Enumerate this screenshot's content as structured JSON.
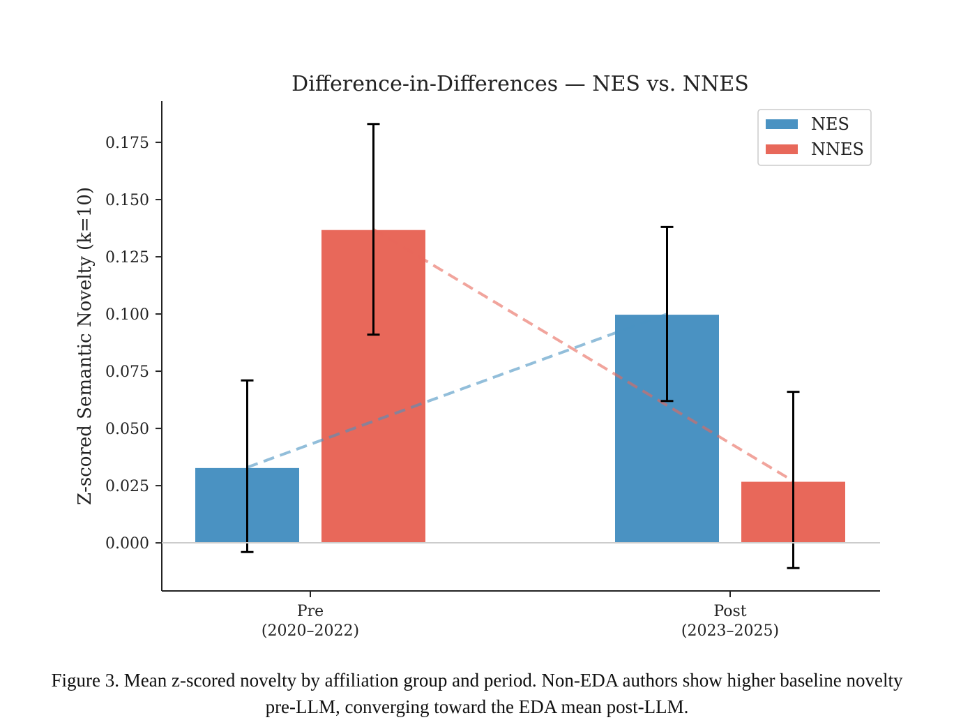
{
  "chart_data": {
    "type": "bar",
    "title": "Difference-in-Differences — NES vs. NNES",
    "ylabel": "Z-scored Semantic Novelty (k=10)",
    "xlabel": "",
    "categories": [
      {
        "line1": "Pre",
        "line2": "(2020–2022)"
      },
      {
        "line1": "Post",
        "line2": "(2023–2025)"
      }
    ],
    "series": [
      {
        "name": "NES",
        "color": "#4a92c2",
        "values": [
          0.033,
          0.1
        ],
        "err_low": [
          -0.004,
          0.062
        ],
        "err_high": [
          0.071,
          0.138
        ]
      },
      {
        "name": "NNES",
        "color": "#e8685a",
        "values": [
          0.137,
          0.027
        ],
        "err_low": [
          0.091,
          -0.011
        ],
        "err_high": [
          0.183,
          0.066
        ]
      }
    ],
    "ylim": [
      -0.021,
      0.193
    ],
    "yticks": [
      "0.000",
      "0.025",
      "0.050",
      "0.075",
      "0.100",
      "0.125",
      "0.150",
      "0.175"
    ],
    "legend_position": "top-right",
    "grid": false,
    "connecting_lines": "dashed"
  },
  "caption": {
    "line1": "Figure 3. Mean z-scored novelty by affiliation group and period. Non-EDA authors show higher baseline novelty",
    "line2": "pre-LLM, converging toward the EDA mean post-LLM."
  }
}
